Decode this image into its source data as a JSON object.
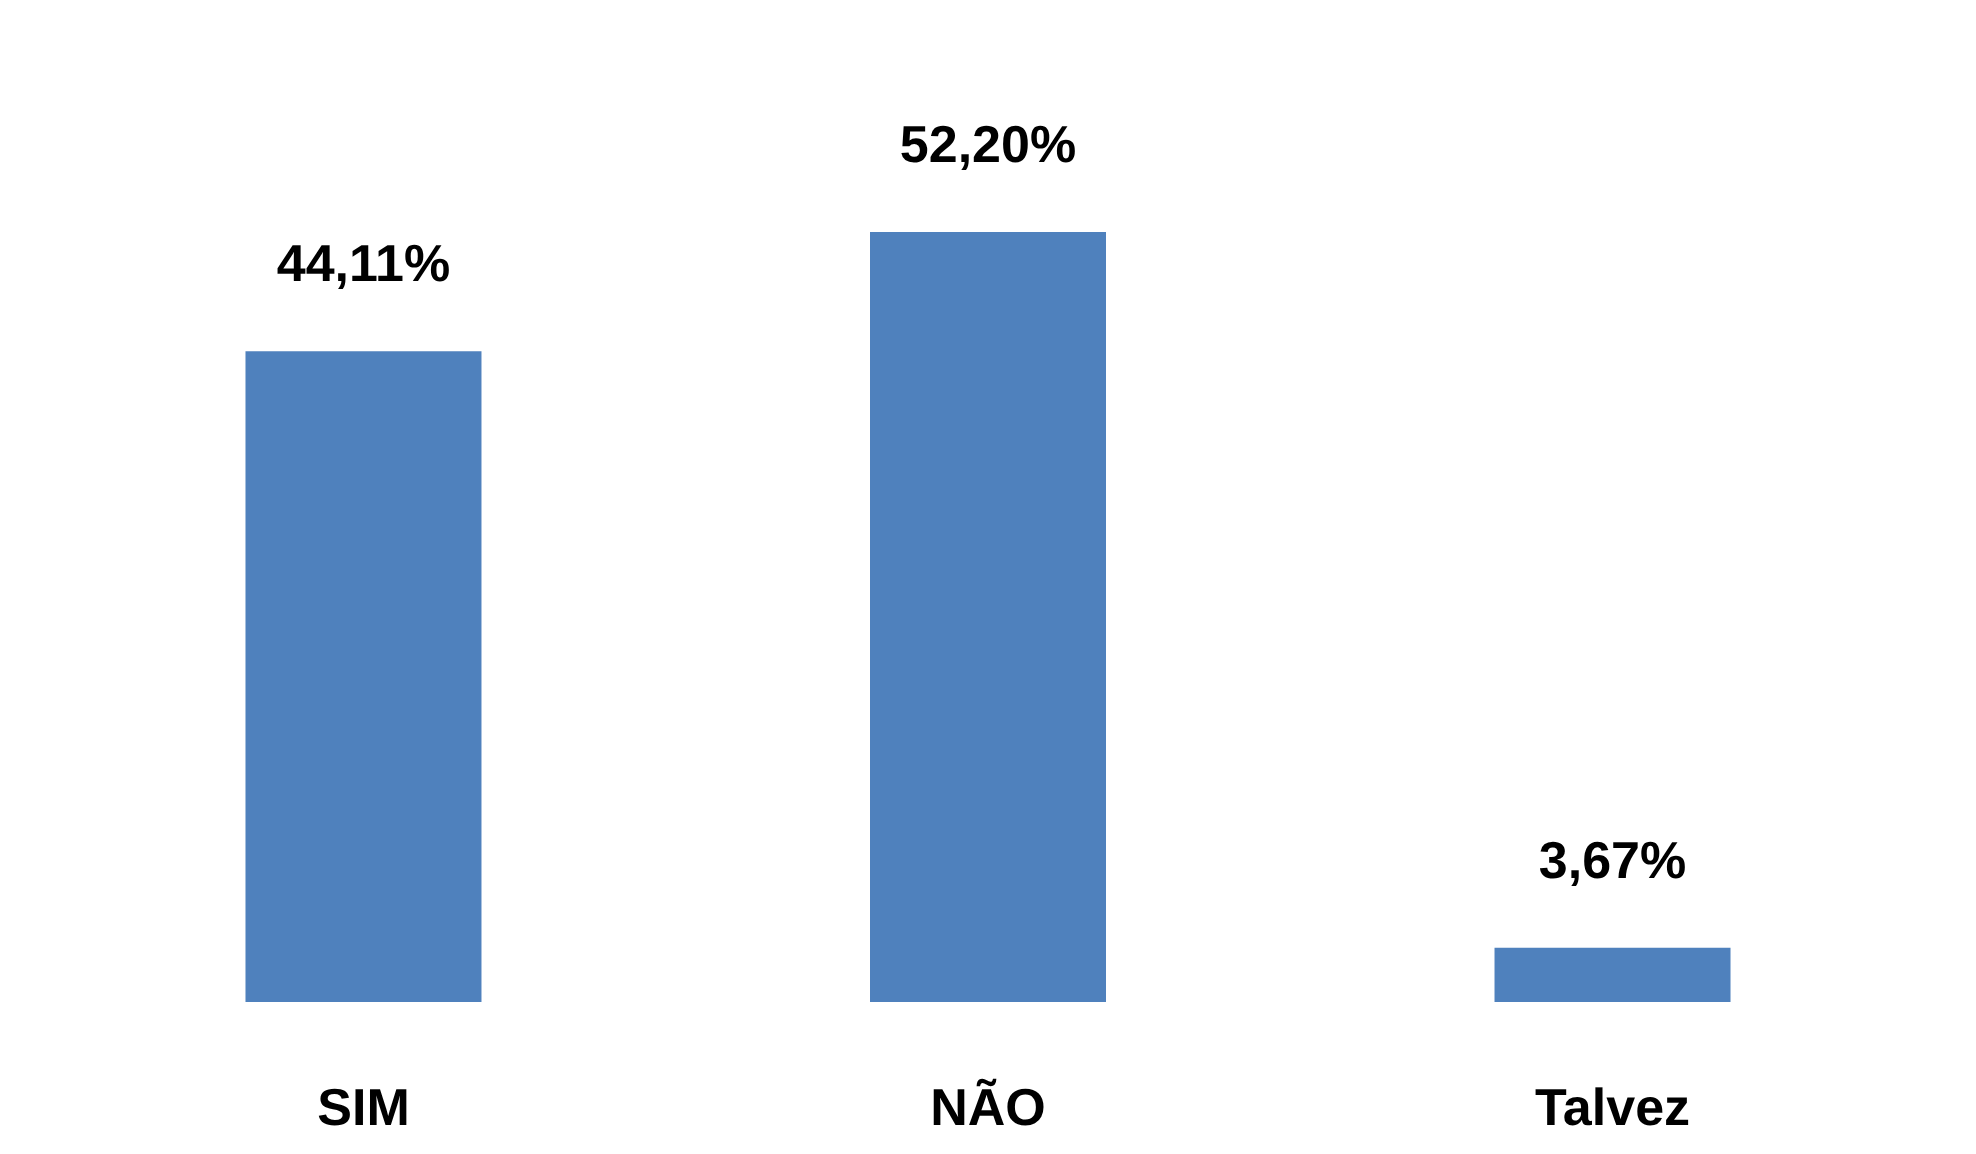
{
  "chart_data": {
    "type": "bar",
    "categories": [
      "SIM",
      "NÃO",
      "Talvez"
    ],
    "values": [
      44.11,
      52.2,
      3.67
    ],
    "value_labels": [
      "44,11%",
      "52,20%",
      "3,67%"
    ],
    "color": "#4f81bd"
  }
}
